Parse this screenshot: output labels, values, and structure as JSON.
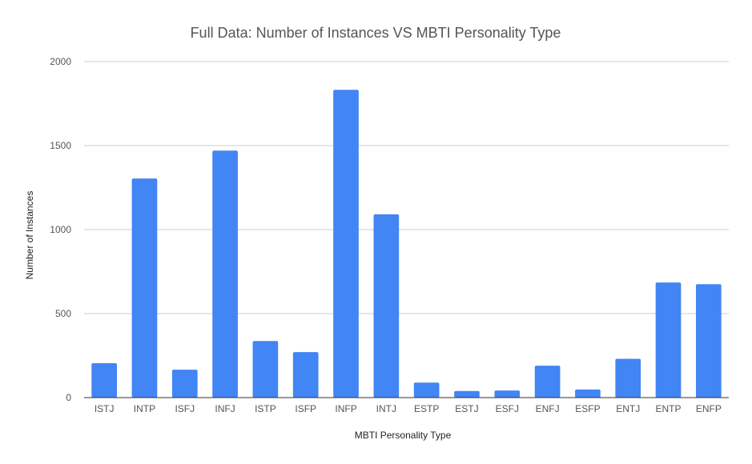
{
  "chart_data": {
    "type": "bar",
    "title": "Full Data: Number of Instances VS MBTI Personality Type",
    "xlabel": "MBTI Personality Type",
    "ylabel": "Number of Instances",
    "categories": [
      "ISTJ",
      "INTP",
      "ISFJ",
      "INFJ",
      "ISTP",
      "ISFP",
      "INFP",
      "INTJ",
      "ESTP",
      "ESTJ",
      "ESFJ",
      "ENFJ",
      "ESFP",
      "ENTJ",
      "ENTP",
      "ENFP"
    ],
    "series": [
      {
        "values": [
          205,
          1304,
          166,
          1470,
          337,
          271,
          1832,
          1091,
          89,
          39,
          42,
          190,
          48,
          231,
          685,
          675
        ],
        "color": "#4285f4"
      }
    ],
    "ylim": [
      0,
      2000
    ],
    "yticks": [
      0,
      500,
      1000,
      1500,
      2000
    ],
    "grid": true,
    "legend": "none"
  }
}
